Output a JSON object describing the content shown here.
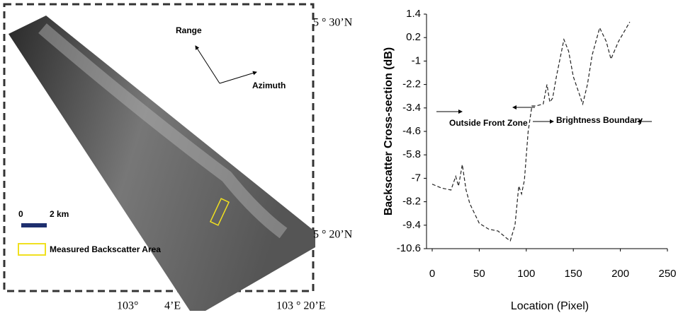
{
  "map": {
    "lat_top": "5 ° 30’N",
    "lat_bottom": "5 ° 20’N",
    "lon_left": "103°",
    "lon_mid": "4’E",
    "lon_right": "103 ° 20’E",
    "range": "Range",
    "azimuth": "Azimuth",
    "scale_zero": "0",
    "scale_length": "2 km",
    "legend": "Measured Backscatter Area"
  },
  "chart_data": {
    "type": "line",
    "color": "#222222",
    "dashed": true,
    "x": [
      0,
      10,
      20,
      25,
      28,
      32,
      36,
      40,
      50,
      60,
      70,
      80,
      83,
      88,
      92,
      95,
      98,
      102,
      106,
      110,
      118,
      122,
      125,
      128,
      132,
      140,
      145,
      150,
      160,
      165,
      170,
      178,
      185,
      190,
      198,
      210
    ],
    "values": [
      -7.3,
      -7.5,
      -7.6,
      -6.9,
      -7.4,
      -6.3,
      -7.6,
      -8.3,
      -9.3,
      -9.6,
      -9.7,
      -10.1,
      -10.2,
      -9.4,
      -7.4,
      -7.8,
      -7.1,
      -4.6,
      -3.3,
      -3.3,
      -3.2,
      -2.2,
      -3.1,
      -2.9,
      -1.8,
      0.1,
      -0.5,
      -1.8,
      -3.2,
      -2.2,
      -0.7,
      0.7,
      0,
      -0.9,
      0,
      1.0
    ],
    "xlim": [
      0,
      250
    ],
    "xticks": [
      0,
      50,
      100,
      150,
      200,
      250
    ],
    "ylim": [
      -10.6,
      1.4
    ],
    "yticks": [
      1.4,
      0.2,
      -1,
      -2.2,
      -3.4,
      -4.6,
      -5.8,
      -7,
      -8.2,
      -9.4,
      -10.6
    ],
    "xlabel": "Location (Pixel)",
    "ylabel": "Backscatter Cross-section (dB)",
    "annotations": [
      "Outside Front Zone",
      "Brightness Boundary"
    ],
    "grid": false
  }
}
